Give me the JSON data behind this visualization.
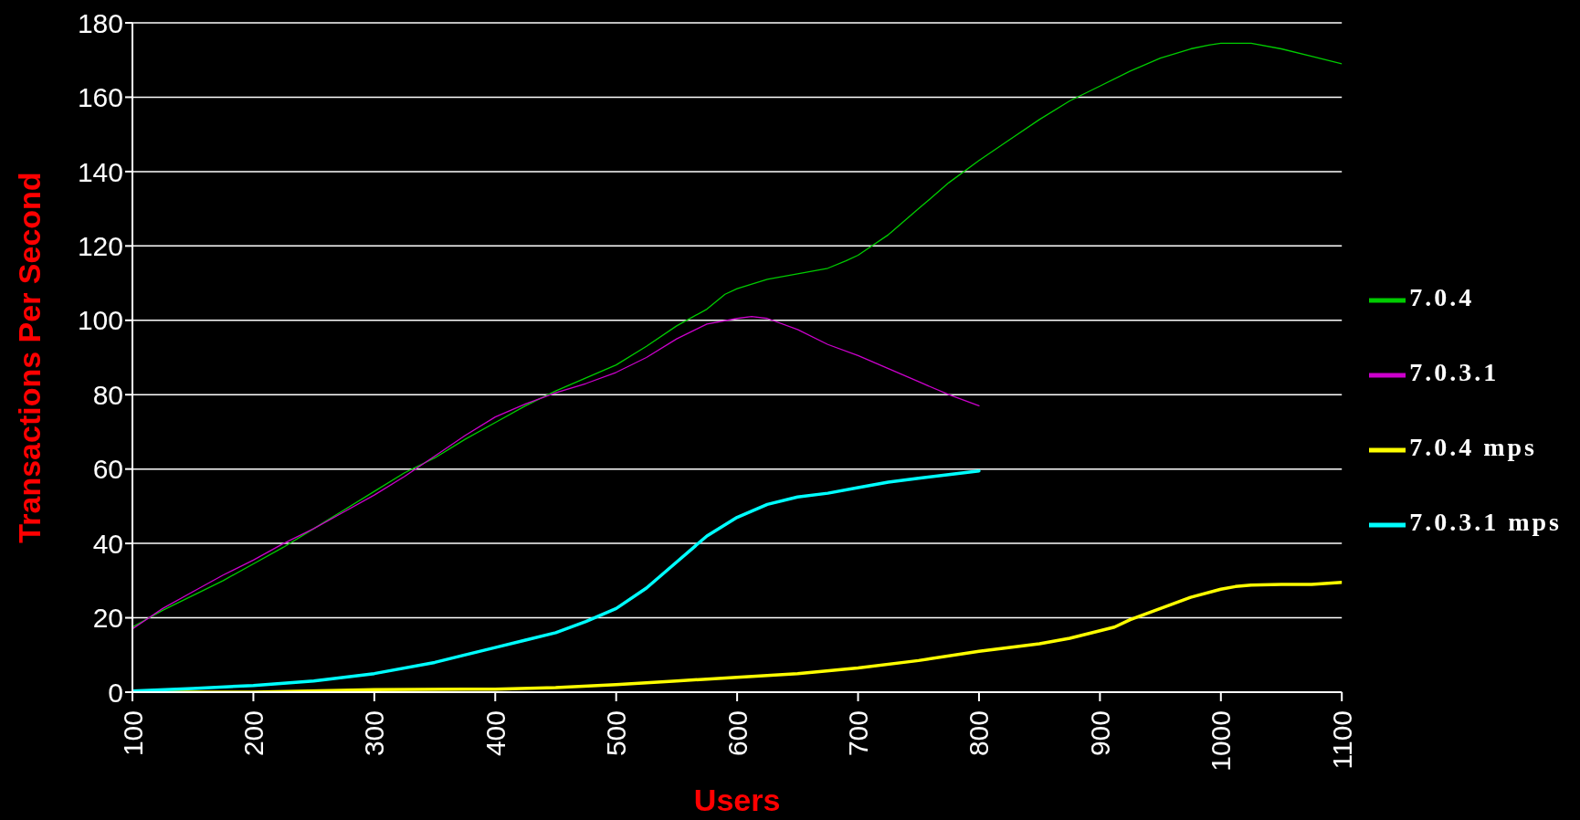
{
  "chart_data": {
    "type": "line",
    "xlabel": "Users",
    "ylabel": "Transactions Per Second",
    "xlim": [
      100,
      1100
    ],
    "xticks": [
      100,
      200,
      300,
      400,
      500,
      600,
      700,
      800,
      900,
      1000,
      1100
    ],
    "ylim": [
      0,
      180
    ],
    "yticks": [
      0,
      20,
      40,
      60,
      80,
      100,
      120,
      140,
      160,
      180
    ],
    "grid": "y",
    "legend": "right",
    "marker": "none",
    "line_style": "solid",
    "series": [
      {
        "name": "7.0.4",
        "color": "#00cc00",
        "x": [
          100,
          125,
          150,
          175,
          200,
          225,
          250,
          275,
          300,
          325,
          350,
          375,
          400,
          425,
          450,
          475,
          500,
          525,
          550,
          575,
          590,
          600,
          625,
          650,
          675,
          690,
          700,
          725,
          750,
          775,
          800,
          825,
          850,
          875,
          900,
          925,
          950,
          975,
          990,
          1000,
          1025,
          1050,
          1075,
          1100
        ],
        "values": [
          17.5,
          22,
          26,
          30,
          34.5,
          39,
          44,
          49,
          54,
          59,
          63,
          68,
          72.5,
          77,
          81,
          84.5,
          88,
          93,
          98.5,
          103,
          107,
          108.5,
          111,
          112.5,
          114,
          116,
          117.5,
          123,
          130,
          137,
          143,
          148.5,
          154,
          159,
          163,
          167,
          170.5,
          173,
          174,
          174.5,
          174.5,
          173,
          171,
          169
        ]
      },
      {
        "name": "7.0.3.1",
        "color": "#cc00cc",
        "x": [
          100,
          125,
          150,
          175,
          200,
          225,
          250,
          275,
          300,
          325,
          350,
          375,
          400,
          425,
          450,
          475,
          500,
          525,
          550,
          575,
          600,
          612,
          625,
          650,
          675,
          700,
          725,
          750,
          775,
          800
        ],
        "values": [
          17,
          22.5,
          27,
          31.5,
          35.5,
          40,
          44,
          48.5,
          53,
          58,
          63.5,
          69,
          74,
          77.5,
          80.5,
          83,
          86,
          90,
          95,
          99,
          100.5,
          101,
          100.5,
          97.5,
          93.5,
          90.5,
          87,
          83.5,
          80,
          77
        ]
      },
      {
        "name": "7.0.4 mps",
        "color": "#ffff00",
        "x": [
          100,
          200,
          300,
          400,
          450,
          500,
          550,
          600,
          650,
          700,
          750,
          800,
          850,
          875,
          900,
          912,
          925,
          950,
          975,
          1000,
          1012,
          1025,
          1050,
          1075,
          1100
        ],
        "values": [
          0,
          0,
          0.7,
          0.8,
          1.2,
          2,
          3,
          4,
          5,
          6.5,
          8.5,
          11,
          13,
          14.5,
          16.5,
          17.5,
          19.5,
          22.5,
          25.5,
          27.7,
          28.4,
          28.8,
          29,
          29,
          29.5
        ]
      },
      {
        "name": "7.0.3.1 mps",
        "color": "#00ffff",
        "x": [
          100,
          150,
          200,
          250,
          275,
          300,
          350,
          400,
          425,
          450,
          475,
          500,
          525,
          550,
          575,
          600,
          625,
          650,
          675,
          700,
          725,
          750,
          775,
          800
        ],
        "values": [
          0.3,
          1,
          1.8,
          3,
          4,
          5,
          8,
          12,
          14,
          16,
          19,
          22.5,
          28,
          35,
          42,
          47,
          50.5,
          52.5,
          53.5,
          55,
          56.5,
          57.5,
          58.5,
          59.5
        ]
      }
    ]
  }
}
